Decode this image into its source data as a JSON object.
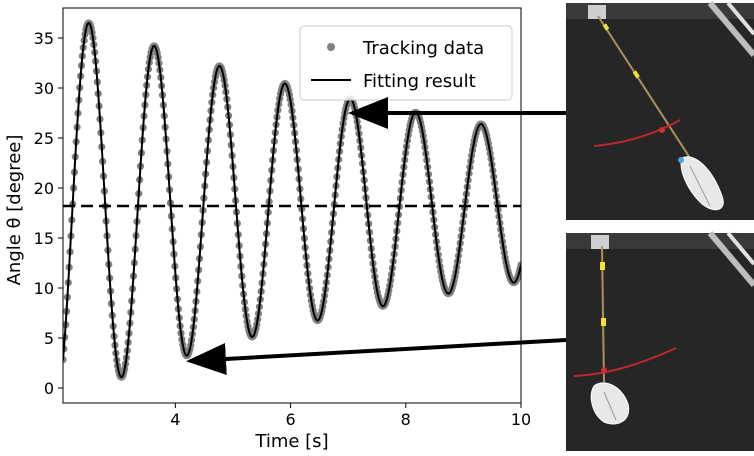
{
  "chart_data": {
    "type": "line",
    "xlabel": "Time [s]",
    "ylabel": "Angle θ [degree]",
    "xlim": [
      2.05,
      10
    ],
    "ylim": [
      -1.5,
      38
    ],
    "x_ticks": [
      4,
      6,
      8,
      10
    ],
    "y_ticks": [
      0,
      5,
      10,
      15,
      20,
      25,
      30,
      35
    ],
    "grid": false,
    "legend_position": "top-right",
    "series": [
      {
        "name": "Tracking data",
        "style": "scatter",
        "color": "#808080",
        "model": {
          "offset": 18.2,
          "amplitude0": 18.3,
          "decay": 0.118,
          "period": 1.135,
          "phase_peak_time": 2.5
        }
      },
      {
        "name": "Fitting result",
        "style": "line",
        "color": "#000000",
        "model": {
          "offset": 18.2,
          "amplitude0": 18.3,
          "decay": 0.118,
          "period": 1.135,
          "phase_peak_time": 2.5
        }
      }
    ],
    "reference_line": {
      "y": 18.2,
      "style": "dashed",
      "color": "#000000"
    },
    "annotations": [
      {
        "type": "arrow",
        "points_to": {
          "x": 7.0,
          "y": 29
        },
        "from": "top-photo"
      },
      {
        "type": "arrow",
        "points_to": {
          "x": 4.2,
          "y": 3.3
        },
        "from": "bottom-photo"
      }
    ]
  },
  "legend": {
    "tracking_label": "Tracking data",
    "fitting_label": "Fitting result"
  },
  "photos": [
    {
      "label": "pendulum-photo-peak"
    },
    {
      "label": "pendulum-photo-trough"
    }
  ],
  "colors": {
    "tracking": "#808080",
    "fit": "#000000",
    "photo_background": "#262626",
    "arc": "#c0262b"
  }
}
